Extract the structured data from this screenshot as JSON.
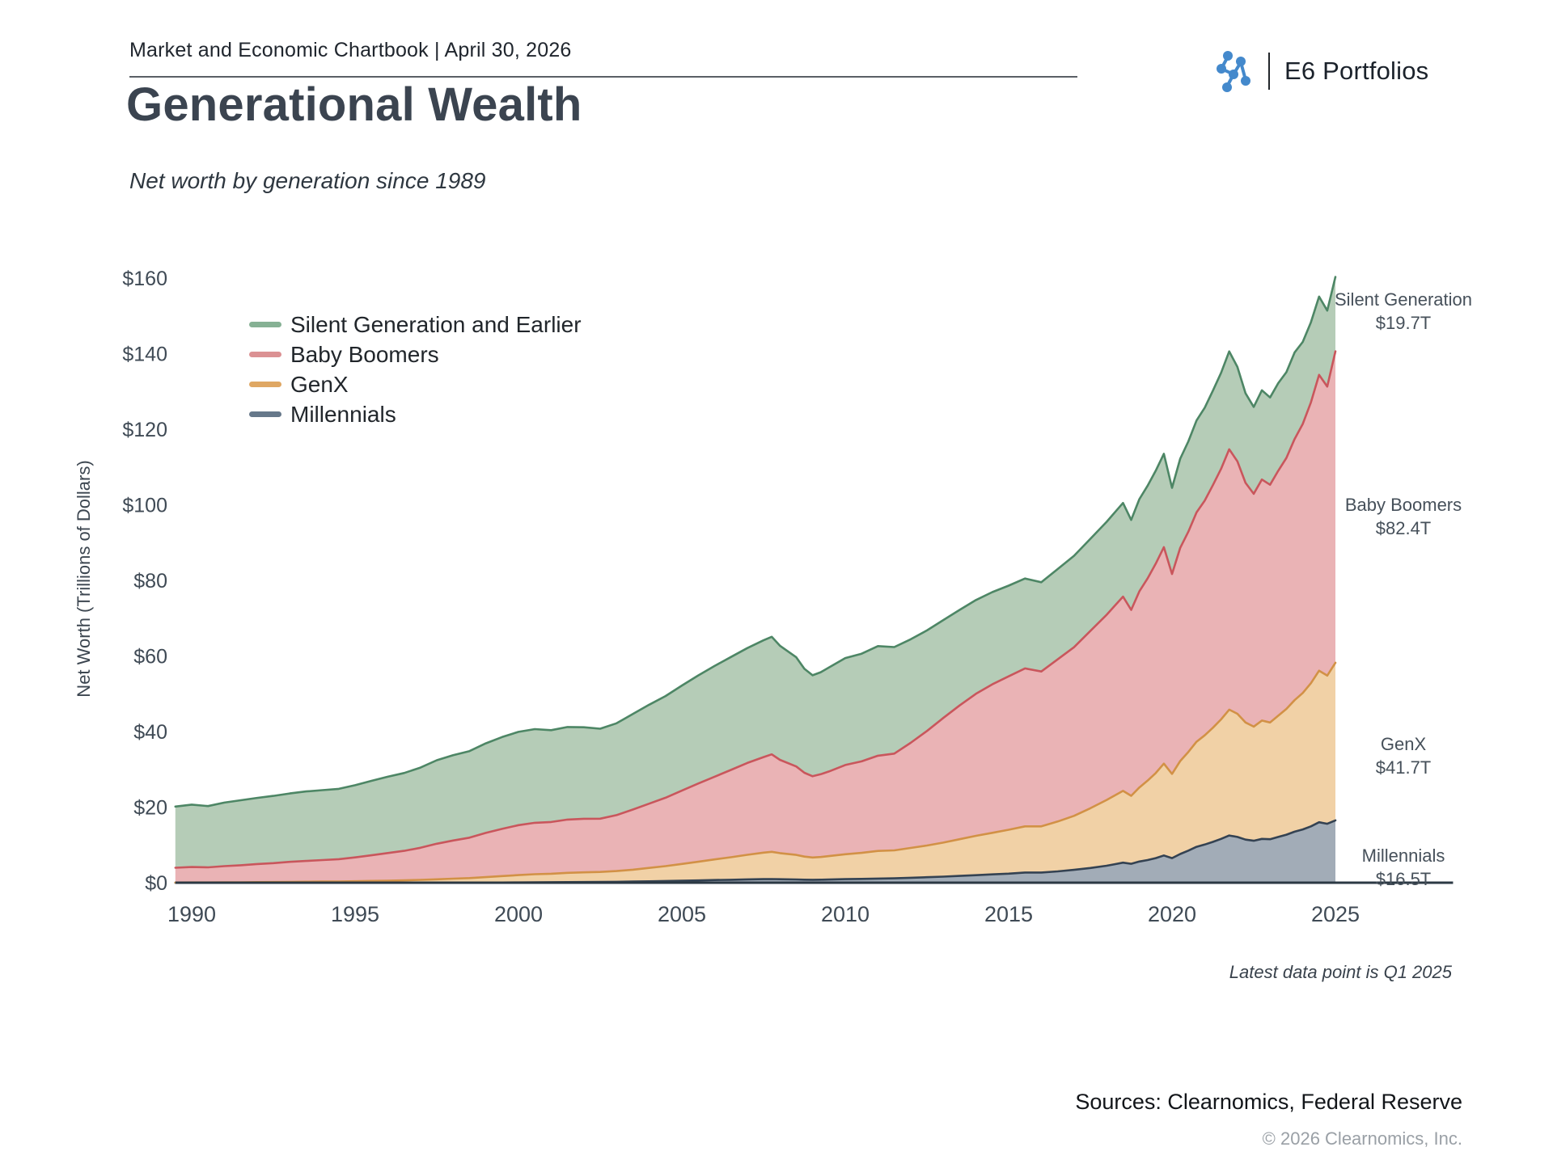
{
  "header": {
    "report_title": "Market and Economic Chartbook | April 30, 2026",
    "brand": "E6 Portfolios",
    "brand_icon": "molecule-dots-icon",
    "brand_color": "#4489cc"
  },
  "title": "Generational Wealth",
  "subtitle": "Net worth by generation since 1989",
  "footer": {
    "latest_note": "Latest data point is Q1 2025",
    "sources": "Sources: Clearnomics, Federal Reserve",
    "copyright": "© 2026 Clearnomics, Inc."
  },
  "chart_data": {
    "type": "area",
    "stacked": true,
    "title": "Generational Wealth",
    "ylabel": "Net Worth (Trillions of Dollars)",
    "xlabel": "",
    "ylim": [
      0,
      165
    ],
    "xlim": [
      1989.5,
      2028.6
    ],
    "grid": false,
    "legend_position": "upper-left-inside",
    "y_tick_prefix": "$",
    "y_ticks": [
      0,
      20,
      40,
      60,
      80,
      100,
      120,
      140,
      160
    ],
    "x_ticks": [
      1990,
      1995,
      2000,
      2005,
      2010,
      2015,
      2020,
      2025
    ],
    "axis_color": "#2c3944",
    "tick_label_color": "#3f4a55",
    "x": [
      1989.5,
      1990,
      1990.5,
      1991,
      1991.5,
      1992,
      1992.5,
      1993,
      1993.5,
      1994,
      1994.5,
      1995,
      1995.5,
      1996,
      1996.5,
      1997,
      1997.5,
      1998,
      1998.5,
      1999,
      1999.5,
      2000,
      2000.5,
      2001,
      2001.5,
      2002,
      2002.5,
      2003,
      2003.5,
      2004,
      2004.5,
      2005,
      2005.5,
      2006,
      2006.5,
      2007,
      2007.5,
      2007.75,
      2008,
      2008.5,
      2008.75,
      2009,
      2009.25,
      2009.5,
      2010,
      2010.5,
      2011,
      2011.5,
      2012,
      2012.5,
      2013,
      2013.5,
      2014,
      2014.5,
      2015,
      2015.5,
      2016,
      2016.5,
      2017,
      2017.5,
      2018,
      2018.25,
      2018.5,
      2018.75,
      2019,
      2019.25,
      2019.5,
      2019.75,
      2020,
      2020.25,
      2020.5,
      2020.75,
      2021,
      2021.25,
      2021.5,
      2021.75,
      2022,
      2022.25,
      2022.5,
      2022.75,
      2023,
      2023.25,
      2023.5,
      2023.75,
      2024,
      2024.25,
      2024.5,
      2024.75,
      2025
    ],
    "series": [
      {
        "name": "Silent Generation and Earlier",
        "annotation_label": "Silent Generation",
        "end_value_label": "$19.7T",
        "end_value_trillions": 19.7,
        "fill": "#b5ccb7",
        "stroke": "#4d8665",
        "legend_color": "#86b194",
        "values": [
          16.2,
          16.5,
          16.2,
          16.8,
          17.2,
          17.5,
          17.8,
          18.1,
          18.4,
          18.5,
          18.6,
          19.1,
          19.7,
          20.2,
          20.6,
          21.2,
          22.1,
          22.6,
          22.9,
          23.7,
          24.3,
          24.7,
          24.8,
          24.3,
          24.5,
          24.2,
          23.8,
          24.3,
          25.3,
          26.2,
          26.9,
          27.8,
          28.6,
          29.3,
          29.9,
          30.4,
          30.9,
          31.1,
          30.2,
          28.9,
          27.5,
          26.7,
          27.0,
          27.5,
          28.3,
          28.5,
          29.0,
          28.2,
          27.4,
          26.6,
          25.9,
          25.3,
          24.8,
          24.4,
          24.0,
          23.8,
          23.6,
          23.9,
          24.2,
          24.4,
          24.6,
          24.7,
          24.8,
          23.8,
          24.4,
          24.5,
          24.6,
          24.7,
          22.8,
          23.6,
          23.9,
          24.3,
          24.6,
          25.0,
          25.4,
          25.9,
          25.0,
          23.7,
          23.0,
          23.6,
          23.1,
          23.2,
          22.7,
          22.9,
          21.7,
          21.2,
          20.7,
          20.1,
          19.7
        ]
      },
      {
        "name": "Baby Boomers",
        "annotation_label": "Baby Boomers",
        "end_value_label": "$82.4T",
        "end_value_trillions": 82.4,
        "fill": "#eab3b5",
        "stroke": "#c9565c",
        "legend_color": "#db9193",
        "values": [
          3.9,
          4.1,
          4.0,
          4.3,
          4.5,
          4.8,
          5.0,
          5.3,
          5.5,
          5.7,
          5.9,
          6.3,
          6.8,
          7.3,
          7.8,
          8.5,
          9.4,
          10.1,
          10.7,
          11.7,
          12.5,
          13.2,
          13.6,
          13.7,
          14.1,
          14.2,
          14.1,
          14.8,
          15.9,
          17.0,
          18.1,
          19.4,
          20.7,
          21.9,
          23.1,
          24.3,
          25.3,
          25.8,
          24.7,
          23.4,
          22.2,
          21.5,
          21.9,
          22.4,
          23.6,
          24.2,
          25.2,
          25.6,
          27.8,
          30.3,
          33.0,
          35.4,
          37.6,
          39.3,
          40.6,
          41.8,
          41.0,
          42.9,
          44.6,
          46.9,
          49.0,
          50.2,
          51.4,
          49.2,
          51.9,
          53.5,
          55.4,
          57.3,
          52.9,
          56.4,
          58.3,
          60.7,
          62.1,
          64.2,
          66.3,
          68.9,
          66.8,
          63.4,
          61.6,
          63.8,
          62.9,
          64.8,
          66.4,
          69.1,
          71.2,
          74.3,
          78.3,
          76.5,
          82.4
        ]
      },
      {
        "name": "GenX",
        "annotation_label": "GenX",
        "end_value_label": "$41.7T",
        "end_value_trillions": 41.7,
        "fill": "#f1d1a6",
        "stroke": "#d29146",
        "legend_color": "#dfa763",
        "values": [
          0.05,
          0.06,
          0.07,
          0.09,
          0.11,
          0.14,
          0.17,
          0.21,
          0.25,
          0.29,
          0.33,
          0.39,
          0.46,
          0.54,
          0.63,
          0.75,
          0.9,
          1.05,
          1.2,
          1.45,
          1.7,
          1.95,
          2.15,
          2.25,
          2.45,
          2.55,
          2.65,
          2.85,
          3.15,
          3.55,
          3.95,
          4.45,
          4.95,
          5.45,
          5.95,
          6.5,
          7.0,
          7.2,
          6.9,
          6.5,
          6.1,
          5.9,
          6.0,
          6.2,
          6.6,
          6.9,
          7.3,
          7.4,
          7.9,
          8.4,
          9.0,
          9.7,
          10.4,
          11.0,
          11.6,
          12.2,
          12.2,
          13.2,
          14.3,
          15.8,
          17.4,
          18.2,
          19.0,
          18.0,
          19.6,
          21.0,
          22.5,
          24.3,
          22.3,
          24.6,
          26.1,
          27.8,
          28.9,
          30.2,
          31.6,
          33.3,
          32.6,
          31.0,
          30.2,
          31.3,
          30.9,
          32.1,
          33.3,
          34.8,
          36.1,
          37.9,
          40.1,
          39.2,
          41.7
        ]
      },
      {
        "name": "Millennials",
        "annotation_label": "Millennials",
        "end_value_label": "$16.5T",
        "end_value_trillions": 16.5,
        "fill": "#a2acb7",
        "stroke": "#344252",
        "legend_color": "#66788a",
        "values": [
          0,
          0,
          0,
          0,
          0,
          0,
          0,
          0,
          0,
          0,
          0,
          0,
          0,
          0,
          0,
          0,
          0,
          0.01,
          0.02,
          0.03,
          0.05,
          0.07,
          0.1,
          0.12,
          0.15,
          0.18,
          0.2,
          0.24,
          0.3,
          0.36,
          0.44,
          0.52,
          0.6,
          0.7,
          0.78,
          0.88,
          0.95,
          0.97,
          0.92,
          0.86,
          0.8,
          0.78,
          0.8,
          0.84,
          0.94,
          1.0,
          1.1,
          1.15,
          1.3,
          1.45,
          1.6,
          1.8,
          2.0,
          2.2,
          2.4,
          2.7,
          2.7,
          3.0,
          3.4,
          3.9,
          4.5,
          4.9,
          5.3,
          5.0,
          5.6,
          6.0,
          6.5,
          7.2,
          6.5,
          7.6,
          8.5,
          9.5,
          10.1,
          10.8,
          11.6,
          12.5,
          12.1,
          11.4,
          11.1,
          11.6,
          11.5,
          12.1,
          12.7,
          13.5,
          14.1,
          14.9,
          16.0,
          15.6,
          16.5
        ]
      }
    ],
    "stack_order": "last-series-at-bottom"
  }
}
